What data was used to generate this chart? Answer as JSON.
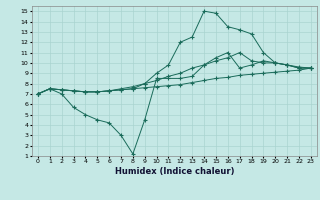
{
  "xlabel": "Humidex (Indice chaleur)",
  "bg_color": "#c5e8e5",
  "grid_color": "#aad4d0",
  "line_color": "#1a6b5a",
  "xlim": [
    -0.5,
    23.5
  ],
  "ylim": [
    1,
    15.5
  ],
  "xticks": [
    0,
    1,
    2,
    3,
    4,
    5,
    6,
    7,
    8,
    9,
    10,
    11,
    12,
    13,
    14,
    15,
    16,
    17,
    18,
    19,
    20,
    21,
    22,
    23
  ],
  "yticks": [
    1,
    2,
    3,
    4,
    5,
    6,
    7,
    8,
    9,
    10,
    11,
    12,
    13,
    14,
    15
  ],
  "line1_y": [
    7.0,
    7.5,
    7.4,
    7.3,
    7.2,
    7.2,
    7.3,
    7.4,
    7.5,
    7.6,
    7.7,
    7.8,
    7.9,
    8.1,
    8.3,
    8.5,
    8.6,
    8.8,
    8.9,
    9.0,
    9.1,
    9.2,
    9.3,
    9.5
  ],
  "line2_y": [
    7.0,
    7.5,
    7.4,
    7.3,
    7.2,
    7.2,
    7.3,
    7.5,
    7.7,
    8.0,
    8.3,
    8.7,
    9.0,
    9.5,
    9.8,
    10.2,
    10.5,
    11.0,
    10.2,
    10.0,
    10.0,
    9.8,
    9.6,
    9.5
  ],
  "line3_y": [
    7.0,
    7.5,
    7.4,
    7.3,
    7.2,
    7.2,
    7.3,
    7.4,
    7.5,
    8.0,
    9.0,
    9.8,
    12.0,
    12.5,
    15.0,
    14.8,
    13.5,
    13.2,
    12.8,
    11.0,
    10.0,
    9.8,
    9.5,
    9.5
  ],
  "line4_y": [
    7.0,
    7.5,
    7.0,
    5.7,
    5.0,
    4.5,
    4.2,
    3.0,
    1.2,
    4.5,
    8.5,
    8.5,
    8.5,
    8.7,
    9.8,
    10.5,
    11.0,
    9.5,
    9.8,
    10.2,
    10.0,
    9.8,
    9.5,
    9.5
  ]
}
